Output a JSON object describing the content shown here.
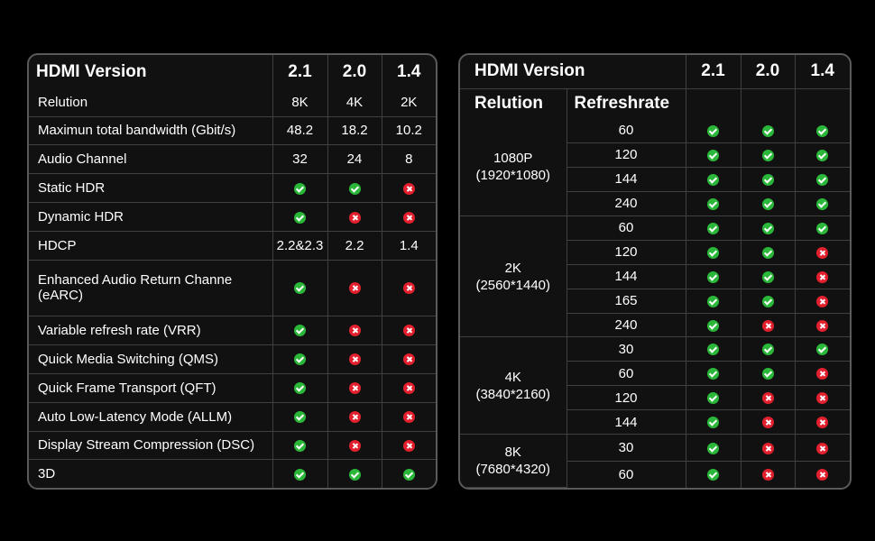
{
  "left_table": {
    "header": {
      "label": "HDMI Version",
      "v21": "2.1",
      "v20": "2.0",
      "v14": "1.4"
    },
    "rows": [
      {
        "feature": "Relution",
        "v21": "8K",
        "v20": "4K",
        "v14": "2K"
      },
      {
        "feature": "Maximun total bandwidth (Gbit/s)",
        "v21": "48.2",
        "v20": "18.2",
        "v14": "10.2"
      },
      {
        "feature": "Audio Channel",
        "v21": "32",
        "v20": "24",
        "v14": "8"
      },
      {
        "feature": "Static HDR",
        "v21": "yes",
        "v20": "yes",
        "v14": "no"
      },
      {
        "feature": "Dynamic HDR",
        "v21": "yes",
        "v20": "no",
        "v14": "no"
      },
      {
        "feature": "HDCP",
        "v21": "2.2&2.3",
        "v20": "2.2",
        "v14": "1.4"
      },
      {
        "feature": "Enhanced Audio Return Channe (eARC)",
        "v21": "yes",
        "v20": "no",
        "v14": "no"
      },
      {
        "feature": "Variable refresh rate (VRR)",
        "v21": "yes",
        "v20": "no",
        "v14": "no"
      },
      {
        "feature": "Quick Media Switching (QMS)",
        "v21": "yes",
        "v20": "no",
        "v14": "no"
      },
      {
        "feature": "Quick Frame Transport (QFT)",
        "v21": "yes",
        "v20": "no",
        "v14": "no"
      },
      {
        "feature": "Auto Low-Latency Mode (ALLM)",
        "v21": "yes",
        "v20": "no",
        "v14": "no"
      },
      {
        "feature": "Display Stream Compression (DSC)",
        "v21": "yes",
        "v20": "no",
        "v14": "no"
      },
      {
        "feature": "3D",
        "v21": "yes",
        "v20": "yes",
        "v14": "yes"
      }
    ]
  },
  "right_table": {
    "header": {
      "label": "HDMI Version",
      "v21": "2.1",
      "v20": "2.0",
      "v14": "1.4",
      "resolution_label": "Relution",
      "refresh_label": "Refreshrate"
    },
    "groups": [
      {
        "res1": "1080P",
        "res2": "(1920*1080)",
        "rows": [
          {
            "rate": "60",
            "v21": "yes",
            "v20": "yes",
            "v14": "yes"
          },
          {
            "rate": "120",
            "v21": "yes",
            "v20": "yes",
            "v14": "yes"
          },
          {
            "rate": "144",
            "v21": "yes",
            "v20": "yes",
            "v14": "yes"
          },
          {
            "rate": "240",
            "v21": "yes",
            "v20": "yes",
            "v14": "yes"
          }
        ]
      },
      {
        "res1": "2K",
        "res2": "(2560*1440)",
        "rows": [
          {
            "rate": "60",
            "v21": "yes",
            "v20": "yes",
            "v14": "yes"
          },
          {
            "rate": "120",
            "v21": "yes",
            "v20": "yes",
            "v14": "no"
          },
          {
            "rate": "144",
            "v21": "yes",
            "v20": "yes",
            "v14": "no"
          },
          {
            "rate": "165",
            "v21": "yes",
            "v20": "yes",
            "v14": "no"
          },
          {
            "rate": "240",
            "v21": "yes",
            "v20": "no",
            "v14": "no"
          }
        ]
      },
      {
        "res1": "4K",
        "res2": "(3840*2160)",
        "rows": [
          {
            "rate": "30",
            "v21": "yes",
            "v20": "yes",
            "v14": "yes"
          },
          {
            "rate": "60",
            "v21": "yes",
            "v20": "yes",
            "v14": "no"
          },
          {
            "rate": "120",
            "v21": "yes",
            "v20": "no",
            "v14": "no"
          },
          {
            "rate": "144",
            "v21": "yes",
            "v20": "no",
            "v14": "no"
          }
        ]
      },
      {
        "res1": "8K",
        "res2": "(7680*4320)",
        "rows": [
          {
            "rate": "30",
            "v21": "yes",
            "v20": "no",
            "v14": "no"
          },
          {
            "rate": "60",
            "v21": "yes",
            "v20": "no",
            "v14": "no"
          }
        ]
      }
    ]
  },
  "colors": {
    "yes": "#2bb83a",
    "no": "#e2202d",
    "border": "#404040",
    "frame": "#5a5a5a"
  },
  "icons": {
    "yes": "check-circle-icon",
    "no": "cross-circle-icon"
  }
}
